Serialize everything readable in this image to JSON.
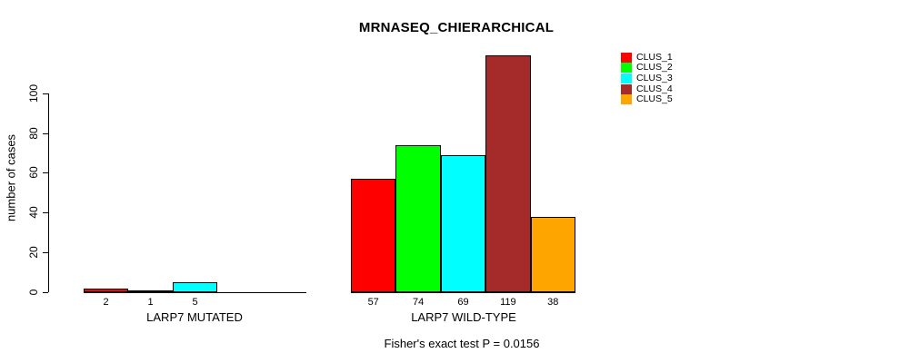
{
  "title": "MRNASEQ_CHIERARCHICAL",
  "footer": "Fisher's exact test P = 0.0156",
  "chart_data": {
    "type": "bar",
    "title": "MRNASEQ_CHIERARCHICAL",
    "xlabel": "",
    "ylabel": "number of cases",
    "ylim": [
      0,
      119
    ],
    "yticks": [
      0,
      20,
      40,
      60,
      80,
      100
    ],
    "grid": false,
    "legend_position": "top-right",
    "categories": [
      "LARP7 MUTATED",
      "LARP7 WILD-TYPE"
    ],
    "series": [
      {
        "name": "CLUS_1",
        "color": "#FF0000",
        "values": [
          2,
          57
        ]
      },
      {
        "name": "CLUS_2",
        "color": "#00FF00",
        "values": [
          1,
          74
        ]
      },
      {
        "name": "CLUS_3",
        "color": "#00FFFF",
        "values": [
          5,
          69
        ]
      },
      {
        "name": "CLUS_4",
        "color": "#A52A2A",
        "values": [
          0,
          119
        ]
      },
      {
        "name": "CLUS_5",
        "color": "#FFA500",
        "values": [
          0,
          38
        ]
      }
    ],
    "bar_value_labels": [
      [
        "2",
        "1",
        "5",
        "",
        ""
      ],
      [
        "57",
        "74",
        "69",
        "119",
        "38"
      ]
    ],
    "annotation": "Fisher's exact test P = 0.0156"
  }
}
